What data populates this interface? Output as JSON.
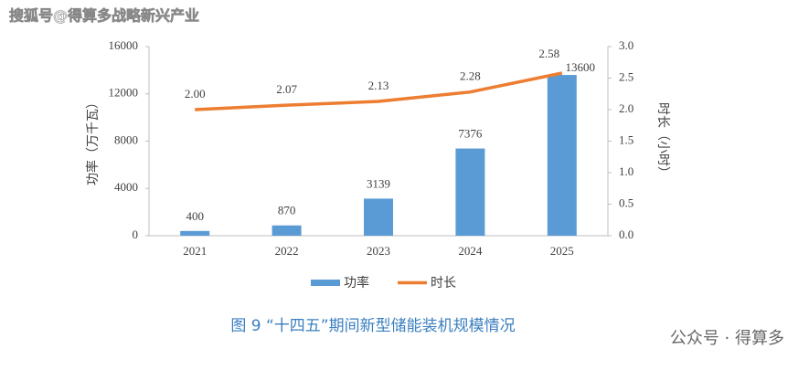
{
  "watermark": "搜狐号@得算多战略新兴产业",
  "caption": "图 9 “十四五”期间新型储能装机规模情况",
  "footer": "公众号 · 得算多",
  "chart_data": {
    "type": "bar-line",
    "categories": [
      "2021",
      "2022",
      "2023",
      "2024",
      "2025"
    ],
    "ylabel": "功率（万千瓦）",
    "y2label": "时长（小时）",
    "ylim": [
      0,
      16000
    ],
    "yticks": [
      0,
      4000,
      8000,
      12000,
      16000
    ],
    "y2lim": [
      0,
      3.0
    ],
    "y2ticks": [
      {
        "value": 0,
        "label": "0.0"
      },
      0.5,
      {
        "value": 1,
        "label": "1.0"
      },
      1.5,
      {
        "value": 2,
        "label": "2.0"
      },
      2.5,
      {
        "value": 3,
        "label": "3.0"
      }
    ],
    "legend": "bottom",
    "series": [
      {
        "name": "功率",
        "type": "bar",
        "color": "#5b9bd5",
        "values": [
          400,
          870,
          3139,
          7376,
          13600
        ]
      },
      {
        "name": "时长",
        "type": "line",
        "axis": "y2",
        "color": "#ed7d31",
        "values": [
          2.0,
          2.07,
          2.13,
          2.28,
          2.58
        ],
        "value_labels": [
          "2.00",
          "2.07",
          "2.13",
          "2.28",
          "2.58"
        ]
      }
    ]
  }
}
